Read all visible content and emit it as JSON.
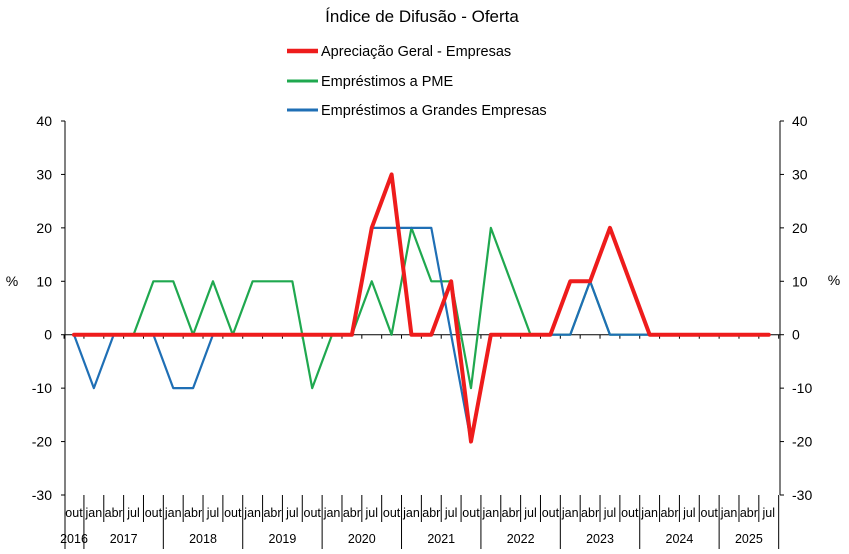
{
  "chart_data": {
    "type": "line",
    "title": "Índice de Difusão - Oferta",
    "ylabel_left": "%",
    "ylabel_right": "%",
    "ylim": [
      -30,
      40
    ],
    "yticks": [
      40,
      30,
      20,
      10,
      0,
      -10,
      -20,
      -30
    ],
    "grid": false,
    "legend_position": "top-center",
    "categories": [
      "out",
      "jan",
      "abr",
      "jul",
      "out",
      "jan",
      "abr",
      "jul",
      "out",
      "jan",
      "abr",
      "jul",
      "out",
      "jan",
      "abr",
      "jul",
      "out",
      "jan",
      "abr",
      "jul",
      "out",
      "jan",
      "abr",
      "jul",
      "out",
      "jan",
      "abr",
      "jul",
      "out",
      "jan",
      "abr",
      "jul",
      "out",
      "jan",
      "abr",
      "jul"
    ],
    "years": [
      {
        "label": "2016",
        "start": 0,
        "end": 0
      },
      {
        "label": "2017",
        "start": 1,
        "end": 4
      },
      {
        "label": "2018",
        "start": 5,
        "end": 8
      },
      {
        "label": "2019",
        "start": 9,
        "end": 12
      },
      {
        "label": "2020",
        "start": 13,
        "end": 16
      },
      {
        "label": "2021",
        "start": 17,
        "end": 20
      },
      {
        "label": "2022",
        "start": 21,
        "end": 24
      },
      {
        "label": "2023",
        "start": 25,
        "end": 28
      },
      {
        "label": "2024",
        "start": 29,
        "end": 32
      },
      {
        "label": "2025",
        "start": 33,
        "end": 35
      }
    ],
    "series": [
      {
        "name": "Apreciação Geral - Empresas",
        "color": "#ee1c1c",
        "values": [
          0,
          0,
          0,
          0,
          0,
          0,
          0,
          0,
          0,
          0,
          0,
          0,
          0,
          0,
          0,
          20,
          30,
          0,
          0,
          10,
          -20,
          0,
          0,
          0,
          0,
          10,
          10,
          20,
          10,
          0,
          0,
          0,
          0,
          0,
          0,
          0
        ]
      },
      {
        "name": "Empréstimos a PME",
        "color": "#1fa84f",
        "values": [
          0,
          0,
          0,
          0,
          10,
          10,
          0,
          10,
          0,
          10,
          10,
          10,
          -10,
          0,
          0,
          10,
          0,
          20,
          10,
          10,
          -10,
          20,
          10,
          0,
          0,
          0,
          10,
          0,
          0,
          0,
          0,
          0,
          0,
          0,
          0,
          0
        ]
      },
      {
        "name": "Empréstimos a Grandes Empresas",
        "color": "#1f6fb5",
        "values": [
          0,
          -10,
          0,
          0,
          0,
          -10,
          -10,
          0,
          0,
          0,
          0,
          0,
          0,
          0,
          0,
          20,
          20,
          20,
          20,
          0,
          -20,
          0,
          0,
          0,
          0,
          0,
          10,
          0,
          0,
          0,
          0,
          0,
          0,
          0,
          0,
          0
        ]
      }
    ]
  }
}
